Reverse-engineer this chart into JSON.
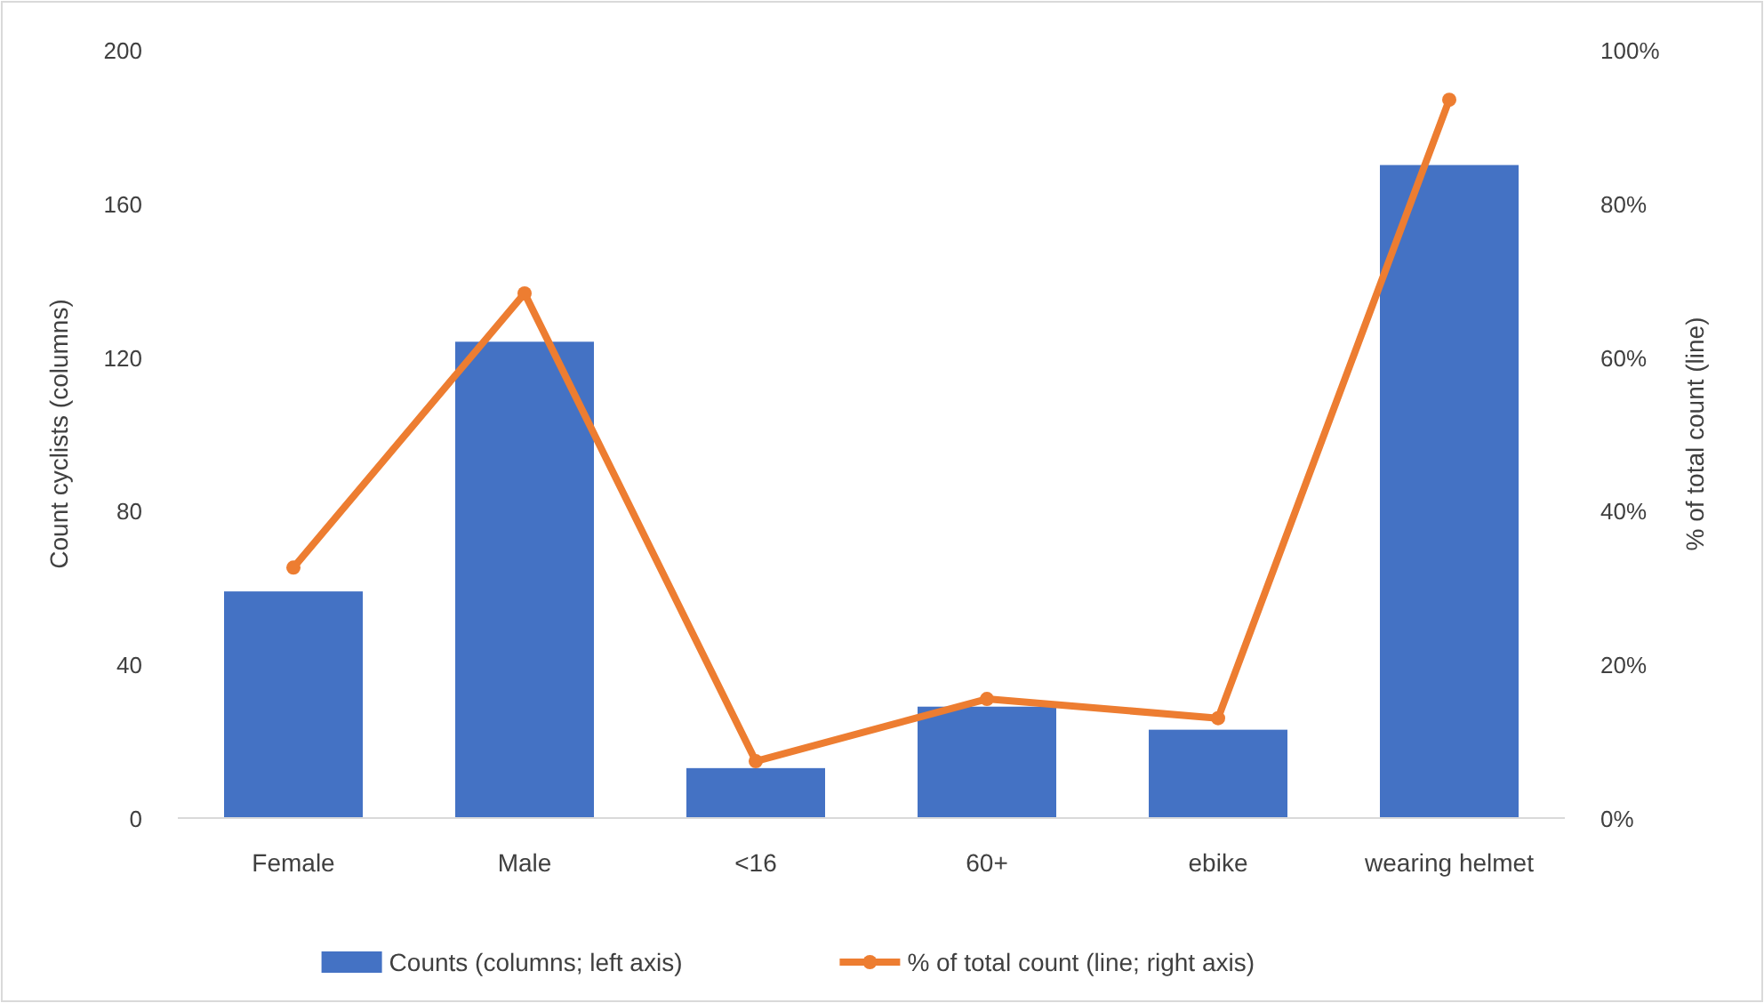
{
  "chart_data": {
    "type": "bar",
    "categories": [
      "Female",
      "Male",
      "<16",
      "60+",
      "ebike",
      "wearing helmet"
    ],
    "ylabel": "Count cyclists (columns)",
    "y2label": "% of total count (line)",
    "series": [
      {
        "name": "Counts (columns; left axis)",
        "color": "#4472c4",
        "values": [
          59,
          124,
          13,
          29,
          23,
          170
        ]
      },
      {
        "name": "% of total count (line; right axis)",
        "type": "line",
        "axis": "y2",
        "color": "#ed7d31",
        "marker": "circle",
        "values": [
          32.6,
          68.3,
          7.4,
          15.5,
          13,
          93.5
        ]
      }
    ],
    "ylim": [
      0,
      200
    ],
    "yticks": [
      0,
      40,
      80,
      120,
      160,
      200
    ],
    "y2lim": [
      0,
      100
    ],
    "y2ticks": [
      {
        "value": 0,
        "label": "0%"
      },
      {
        "value": 20,
        "label": "20%"
      },
      {
        "value": 40,
        "label": "40%"
      },
      {
        "value": 60,
        "label": "60%"
      },
      {
        "value": 80,
        "label": "80%"
      },
      {
        "value": 100,
        "label": "100%"
      }
    ],
    "grid": false,
    "legend": "bottom"
  }
}
